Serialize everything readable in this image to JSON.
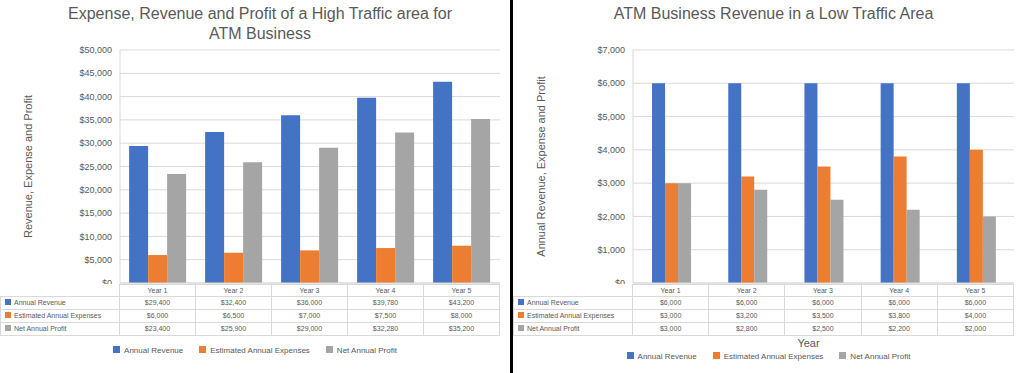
{
  "chart_data": [
    {
      "type": "bar",
      "title": "Expense, Revenue and Profit of a High Traffic area for ATM Business",
      "y_label": "Revenue, Expense and Profit",
      "categories": [
        "Year 1",
        "Year 2",
        "Year 3",
        "Year 4",
        "Year 5"
      ],
      "series": [
        {
          "name": "Annual Revenue",
          "color": "#4472C4",
          "values": [
            29400,
            32400,
            36000,
            39780,
            43200
          ],
          "value_labels": [
            "$29,400",
            "$32,400",
            "$36,000",
            "$39,780",
            "$43,200"
          ]
        },
        {
          "name": "Estimated Annual Expenses",
          "color": "#ED7D31",
          "values": [
            6000,
            6500,
            7000,
            7500,
            8000
          ],
          "value_labels": [
            "$6,000",
            "$6,500",
            "$7,000",
            "$7,500",
            "$8,000"
          ]
        },
        {
          "name": "Net Annual Profit",
          "color": "#A5A5A5",
          "values": [
            23400,
            25900,
            29000,
            32280,
            35200
          ],
          "value_labels": [
            "$23,400",
            "$25,900",
            "$29,000",
            "$32,280",
            "$35,200"
          ]
        }
      ],
      "ylim": [
        0,
        50000
      ],
      "yticks": [
        {
          "value": 0,
          "label": "$0"
        },
        {
          "value": 5000,
          "label": "$5,000"
        },
        {
          "value": 10000,
          "label": "$10,000"
        },
        {
          "value": 15000,
          "label": "$15,000"
        },
        {
          "value": 20000,
          "label": "$20,000"
        },
        {
          "value": 25000,
          "label": "$25,000"
        },
        {
          "value": 30000,
          "label": "$30,000"
        },
        {
          "value": 35000,
          "label": "$35,000"
        },
        {
          "value": 40000,
          "label": "$40,000"
        },
        {
          "value": 45000,
          "label": "$45,000"
        },
        {
          "value": 50000,
          "label": "$50,000"
        }
      ],
      "grid": true,
      "legend": "bottom"
    },
    {
      "type": "bar",
      "title": "ATM Business Revenue in a Low Traffic Area",
      "x_label": "Year",
      "y_label": "Annual Revenue, Expense and Profit",
      "categories": [
        "Year 1",
        "Year 2",
        "Year 3",
        "Year 4",
        "Year 5"
      ],
      "series": [
        {
          "name": "Annual Revenue",
          "color": "#4472C4",
          "values": [
            6000,
            6000,
            6000,
            6000,
            6000
          ],
          "value_labels": [
            "$6,000",
            "$6,000",
            "$6,000",
            "$6,000",
            "$6,000"
          ]
        },
        {
          "name": "Estimated Annual Expenses",
          "color": "#ED7D31",
          "values": [
            3000,
            3200,
            3500,
            3800,
            4000
          ],
          "value_labels": [
            "$3,000",
            "$3,200",
            "$3,500",
            "$3,800",
            "$4,000"
          ]
        },
        {
          "name": "Net Annual Profit",
          "color": "#A5A5A5",
          "values": [
            3000,
            2800,
            2500,
            2200,
            2000
          ],
          "value_labels": [
            "$3,000",
            "$2,800",
            "$2,500",
            "$2,200",
            "$2,000"
          ]
        }
      ],
      "ylim": [
        0,
        7000
      ],
      "yticks": [
        {
          "value": 0,
          "label": "$0"
        },
        {
          "value": 1000,
          "label": "$1,000"
        },
        {
          "value": 2000,
          "label": "$2,000"
        },
        {
          "value": 3000,
          "label": "$3,000"
        },
        {
          "value": 4000,
          "label": "$4,000"
        },
        {
          "value": 5000,
          "label": "$5,000"
        },
        {
          "value": 6000,
          "label": "$6,000"
        },
        {
          "value": 7000,
          "label": "$7,000"
        }
      ],
      "grid": true,
      "legend": "bottom"
    }
  ]
}
